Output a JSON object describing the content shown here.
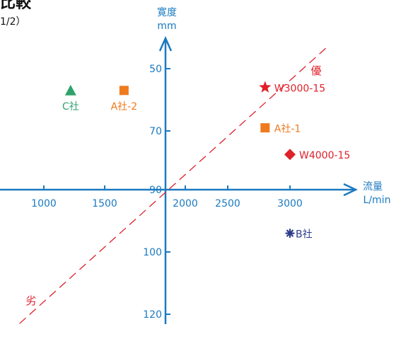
{
  "header": {
    "title_fragment": "比較",
    "subtitle_fragment": "1/2）"
  },
  "chart_data": {
    "type": "scatter",
    "title": "比較",
    "subtitle": "1/2）",
    "x_axis": {
      "label_line1": "流量",
      "label_line2": "L/min",
      "ticks": [
        1000,
        1500,
        2000,
        2500,
        3000
      ],
      "range": [
        750,
        3500
      ],
      "cross_at": 1950
    },
    "y_axis": {
      "label_line1": "寛度",
      "label_line2": "mm",
      "ticks": [
        50,
        70,
        90,
        100,
        120
      ],
      "cross_at": 90
    },
    "trend_line": {
      "from": [
        800,
        123
      ],
      "to": [
        3300,
        43
      ],
      "label_good": "優",
      "label_bad": "劣"
    },
    "points": [
      {
        "name": "W3000-15",
        "x": 2800,
        "y": 56,
        "marker": "star",
        "color": "#e0202a"
      },
      {
        "name": "A社-1",
        "x": 2800,
        "y": 69,
        "marker": "square",
        "color": "#f07a1e"
      },
      {
        "name": "W4000-15",
        "x": 3000,
        "y": 78,
        "marker": "diamond",
        "color": "#e0202a"
      },
      {
        "name": "B社",
        "x": 3000,
        "y": 97,
        "marker": "asterisk",
        "color": "#2b3a8c"
      },
      {
        "name": "C社",
        "x": 1220,
        "y": 57,
        "marker": "triangle",
        "color": "#2fa36b"
      },
      {
        "name": "A社-2",
        "x": 1620,
        "y": 57,
        "marker": "square",
        "color": "#f07a1e"
      }
    ],
    "colors": {
      "axis": "#1b7ac0",
      "trend": "#e0202a"
    },
    "grid": false,
    "legend": "none"
  }
}
